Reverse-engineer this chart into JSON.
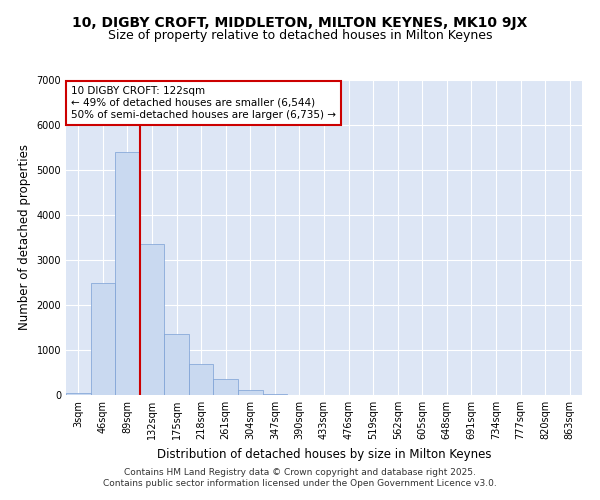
{
  "title_line1": "10, DIGBY CROFT, MIDDLETON, MILTON KEYNES, MK10 9JX",
  "title_line2": "Size of property relative to detached houses in Milton Keynes",
  "xlabel": "Distribution of detached houses by size in Milton Keynes",
  "ylabel": "Number of detached properties",
  "bin_labels": [
    "3sqm",
    "46sqm",
    "89sqm",
    "132sqm",
    "175sqm",
    "218sqm",
    "261sqm",
    "304sqm",
    "347sqm",
    "390sqm",
    "433sqm",
    "476sqm",
    "519sqm",
    "562sqm",
    "605sqm",
    "648sqm",
    "691sqm",
    "734sqm",
    "777sqm",
    "820sqm",
    "863sqm"
  ],
  "bar_values": [
    50,
    2500,
    5400,
    3350,
    1350,
    700,
    350,
    120,
    30,
    5,
    2,
    1,
    0,
    0,
    0,
    0,
    0,
    0,
    0,
    0,
    0
  ],
  "bar_color": "#c9d9f0",
  "bar_edge_color": "#7a9fd4",
  "vline_x": 2.5,
  "vline_color": "#cc0000",
  "annotation_title": "10 DIGBY CROFT: 122sqm",
  "annotation_line1": "← 49% of detached houses are smaller (6,544)",
  "annotation_line2": "50% of semi-detached houses are larger (6,735) →",
  "annotation_box_color": "#ffffff",
  "annotation_box_edge": "#cc0000",
  "ylim": [
    0,
    7000
  ],
  "yticks": [
    0,
    1000,
    2000,
    3000,
    4000,
    5000,
    6000,
    7000
  ],
  "background_color": "#dde6f5",
  "footer_line1": "Contains HM Land Registry data © Crown copyright and database right 2025.",
  "footer_line2": "Contains public sector information licensed under the Open Government Licence v3.0.",
  "title_fontsize": 10,
  "subtitle_fontsize": 9,
  "axis_fontsize": 8.5,
  "tick_fontsize": 7,
  "annot_fontsize": 7.5,
  "footer_fontsize": 6.5
}
